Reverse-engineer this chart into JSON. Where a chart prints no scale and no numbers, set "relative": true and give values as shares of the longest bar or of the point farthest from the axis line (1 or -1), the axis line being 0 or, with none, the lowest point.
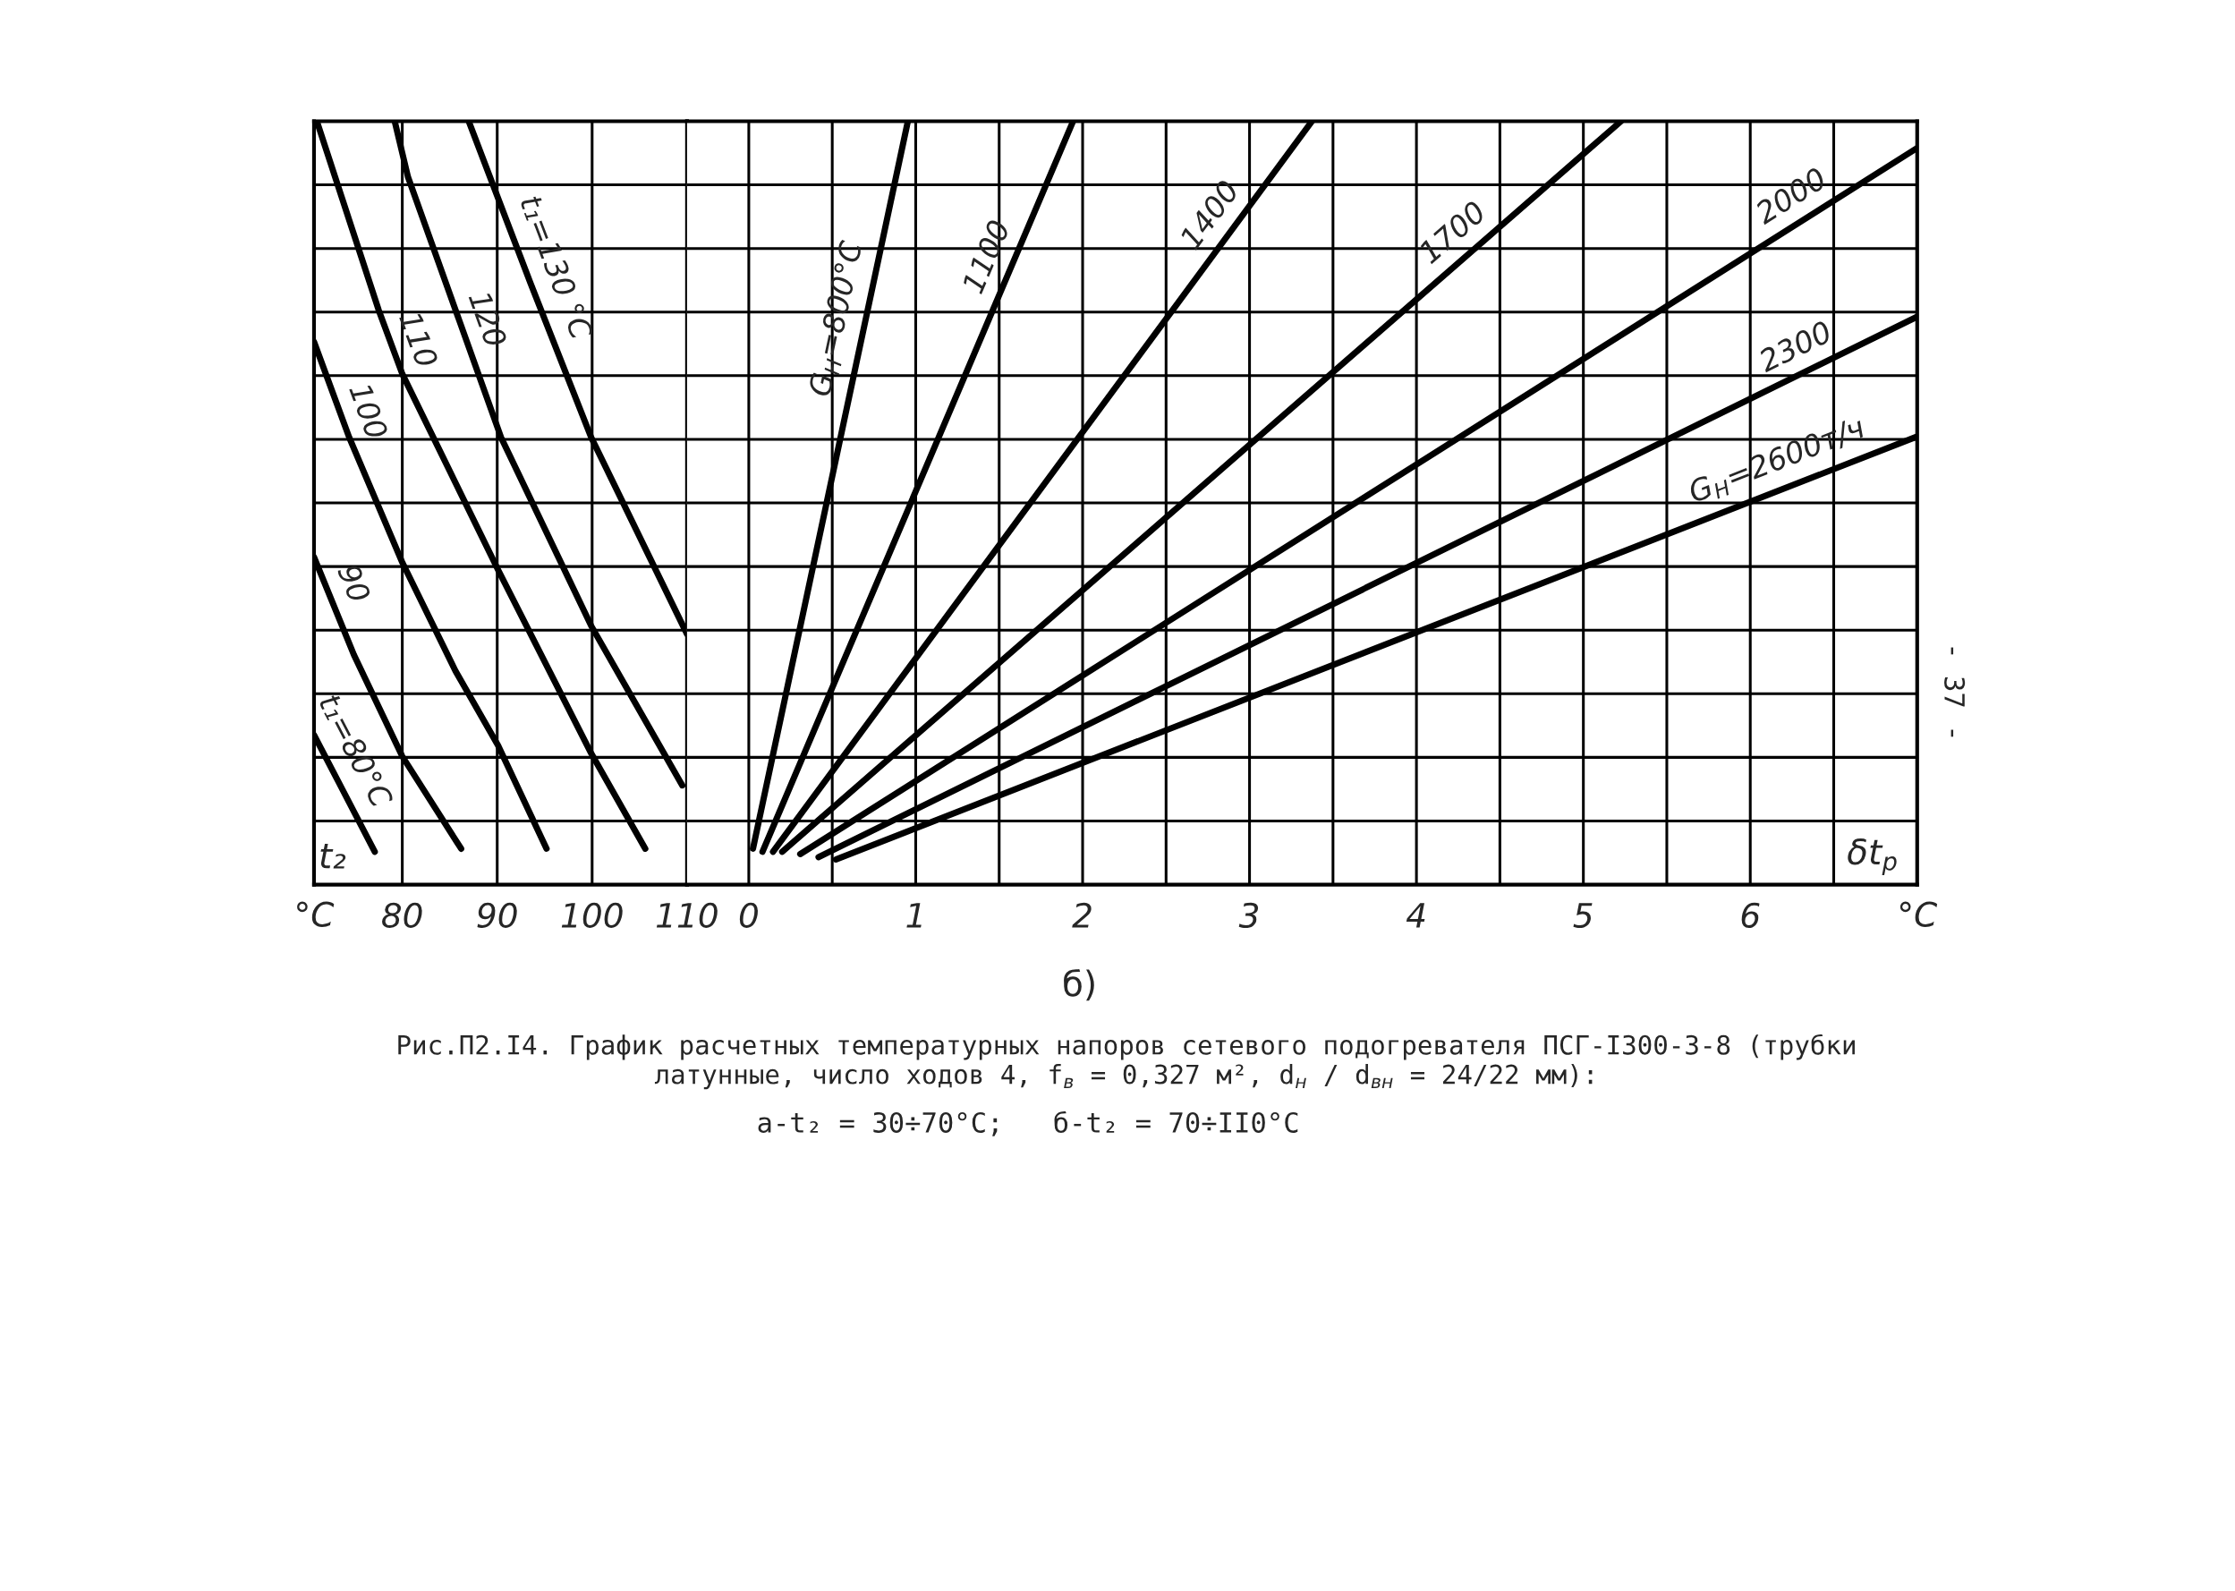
{
  "chart_data": [
    {
      "type": "line",
      "relative": true,
      "xlim": [
        70.7,
        110
      ],
      "xticks": [
        80,
        90,
        100,
        110
      ],
      "xlabel": "°C",
      "tick_labels": "x",
      "grid": true,
      "legend": false,
      "annotations": [
        "t₂"
      ],
      "series": [
        {
          "name": "t₁=80°C",
          "color": "#000000",
          "x": [
            70.7,
            73.3,
            77.1
          ],
          "values": [
            0.196,
            0.134,
            0.043
          ]
        },
        {
          "name": "90",
          "color": "#000000",
          "x": [
            70.7,
            74.9,
            80.0,
            86.2
          ],
          "values": [
            0.429,
            0.301,
            0.168,
            0.047
          ]
        },
        {
          "name": "100",
          "color": "#000000",
          "x": [
            70.7,
            74.4,
            80.0,
            85.6,
            90.1,
            95.2
          ],
          "values": [
            0.711,
            0.586,
            0.422,
            0.28,
            0.182,
            0.047
          ]
        },
        {
          "name": "110",
          "color": "#000000",
          "x": [
            71.0,
            77.5,
            80.0,
            90.1,
            99.9,
            105.6
          ],
          "values": [
            1.0,
            0.753,
            0.669,
            0.412,
            0.172,
            0.047
          ]
        },
        {
          "name": "120",
          "color": "#000000",
          "x": [
            79.2,
            80.6,
            90.4,
            99.9,
            109.5
          ],
          "values": [
            1.0,
            0.927,
            0.586,
            0.339,
            0.13
          ]
        },
        {
          "name": "t₁=130 °C",
          "color": "#000000",
          "x": [
            87.0,
            93.5,
            99.9,
            110.0
          ],
          "values": [
            1.0,
            0.788,
            0.586,
            0.328
          ]
        }
      ]
    },
    {
      "type": "line",
      "relative": true,
      "xlim": [
        -0.37,
        7.0
      ],
      "xticks": [
        0,
        {
          "value": 0.5,
          "label": null
        },
        1,
        {
          "value": 1.5,
          "label": null
        },
        2,
        {
          "value": 2.5,
          "label": null
        },
        3,
        {
          "value": 3.5,
          "label": null
        },
        4,
        {
          "value": 4.5,
          "label": null
        },
        5,
        {
          "value": 5.5,
          "label": null
        },
        6,
        {
          "value": 6.5,
          "label": null
        }
      ],
      "xlabel": "°C",
      "tick_labels": "x",
      "grid": true,
      "legend": false,
      "annotations": [
        "δt$_{p}$",
        "б)",
        "Рис.П2.I4. График расчетных температурных напоров сетевого подогревателя ПСГ-I300-3-8 (трубки\nлатунные, число ходов 4, f$_{в}$ = 0,327 м², d$_{н}$ / d$_{вн}$ = 24/22 мм):",
        "а-t₂ = 30÷70°C;   б-t₂ = 70÷II0°C",
        "- 37 -"
      ],
      "series": [
        {
          "name": "G$_{H}$=800°C",
          "color": "#000000",
          "x": [
            0.025,
            0.953
          ],
          "values": [
            0.047,
            1.0
          ]
        },
        {
          "name": "1100",
          "color": "#000000",
          "x": [
            0.082,
            1.943
          ],
          "values": [
            0.043,
            1.0
          ]
        },
        {
          "name": "1400",
          "color": "#000000",
          "x": [
            0.145,
            3.374
          ],
          "values": [
            0.043,
            1.0
          ]
        },
        {
          "name": "1700",
          "color": "#000000",
          "x": [
            0.2,
            5.226
          ],
          "values": [
            0.043,
            1.0
          ]
        },
        {
          "name": "2000",
          "color": "#000000",
          "x": [
            0.308,
            7.0
          ],
          "values": [
            0.04,
            0.965
          ]
        },
        {
          "name": "2300",
          "color": "#000000",
          "x": [
            0.418,
            7.0
          ],
          "values": [
            0.036,
            0.744
          ]
        },
        {
          "name": "G$_{H}$=2600т/ч",
          "color": "#000000",
          "x": [
            0.522,
            7.0
          ],
          "values": [
            0.033,
            0.587
          ]
        }
      ]
    }
  ]
}
